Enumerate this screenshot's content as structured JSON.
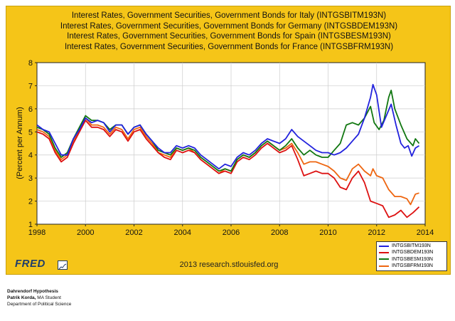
{
  "titles": [
    "Interest Rates, Government Securities, Government Bonds for Italy (INTGSBITM193N)",
    "Interest Rates, Government Securities, Government Bonds for Germany (INTGSBDEM193N)",
    "Interest Rates, Government Securities, Government Bonds for Spain (INTGSBESM193N)",
    "Interest Rates, Government Securities, Government Bonds for France (INTGSBFRM193N)"
  ],
  "source_text": "2013 research.stlouisfed.org",
  "logo_text": "FRED",
  "footer": {
    "line1": "Dahrendorf Hypothesis",
    "line2_name": "Patrik Korda,",
    "line2_rest": " MA Student",
    "line3": "Department of Political Science"
  },
  "chart_data": {
    "type": "line",
    "ylabel": "(Percent per Annum)",
    "xlabel": "",
    "xlim": [
      1998,
      2014
    ],
    "ylim": [
      1,
      8
    ],
    "x_ticks": [
      1998,
      2000,
      2002,
      2004,
      2006,
      2008,
      2010,
      2012,
      2014
    ],
    "y_ticks": [
      1,
      2,
      3,
      4,
      5,
      6,
      7,
      8
    ],
    "grid": true,
    "legend_position": "bottom-right",
    "series": [
      {
        "name": "INTGSBITM193N",
        "color": "#2222dd",
        "points": [
          [
            1998.0,
            5.3
          ],
          [
            1998.25,
            5.1
          ],
          [
            1998.5,
            5.0
          ],
          [
            1998.75,
            4.5
          ],
          [
            1999.0,
            4.0
          ],
          [
            1999.25,
            4.0
          ],
          [
            1999.5,
            4.7
          ],
          [
            1999.75,
            5.1
          ],
          [
            2000.0,
            5.6
          ],
          [
            2000.25,
            5.4
          ],
          [
            2000.5,
            5.5
          ],
          [
            2000.75,
            5.4
          ],
          [
            2001.0,
            5.0
          ],
          [
            2001.25,
            5.3
          ],
          [
            2001.5,
            5.3
          ],
          [
            2001.75,
            4.9
          ],
          [
            2002.0,
            5.2
          ],
          [
            2002.25,
            5.3
          ],
          [
            2002.5,
            4.9
          ],
          [
            2002.75,
            4.6
          ],
          [
            2003.0,
            4.3
          ],
          [
            2003.25,
            4.1
          ],
          [
            2003.5,
            4.1
          ],
          [
            2003.75,
            4.4
          ],
          [
            2004.0,
            4.3
          ],
          [
            2004.25,
            4.4
          ],
          [
            2004.5,
            4.3
          ],
          [
            2004.75,
            4.0
          ],
          [
            2005.0,
            3.8
          ],
          [
            2005.25,
            3.6
          ],
          [
            2005.5,
            3.4
          ],
          [
            2005.75,
            3.6
          ],
          [
            2006.0,
            3.5
          ],
          [
            2006.25,
            3.9
          ],
          [
            2006.5,
            4.1
          ],
          [
            2006.75,
            4.0
          ],
          [
            2007.0,
            4.2
          ],
          [
            2007.25,
            4.5
          ],
          [
            2007.5,
            4.7
          ],
          [
            2007.75,
            4.6
          ],
          [
            2008.0,
            4.5
          ],
          [
            2008.25,
            4.7
          ],
          [
            2008.5,
            5.1
          ],
          [
            2008.75,
            4.8
          ],
          [
            2009.0,
            4.6
          ],
          [
            2009.25,
            4.4
          ],
          [
            2009.5,
            4.2
          ],
          [
            2009.75,
            4.1
          ],
          [
            2010.0,
            4.1
          ],
          [
            2010.25,
            4.0
          ],
          [
            2010.5,
            4.1
          ],
          [
            2010.75,
            4.3
          ],
          [
            2011.0,
            4.6
          ],
          [
            2011.25,
            4.9
          ],
          [
            2011.5,
            5.6
          ],
          [
            2011.75,
            6.5
          ],
          [
            2011.85,
            7.05
          ],
          [
            2012.0,
            6.6
          ],
          [
            2012.2,
            5.2
          ],
          [
            2012.4,
            5.7
          ],
          [
            2012.6,
            6.2
          ],
          [
            2012.8,
            5.3
          ],
          [
            2013.0,
            4.5
          ],
          [
            2013.15,
            4.3
          ],
          [
            2013.3,
            4.4
          ],
          [
            2013.45,
            3.95
          ],
          [
            2013.6,
            4.3
          ],
          [
            2013.75,
            4.4
          ]
        ]
      },
      {
        "name": "INTGSBDEM193N",
        "color": "#dd1111",
        "points": [
          [
            1998.0,
            5.0
          ],
          [
            1998.25,
            4.9
          ],
          [
            1998.5,
            4.7
          ],
          [
            1998.75,
            4.1
          ],
          [
            1999.0,
            3.7
          ],
          [
            1999.25,
            3.9
          ],
          [
            1999.5,
            4.5
          ],
          [
            1999.75,
            5.0
          ],
          [
            2000.0,
            5.5
          ],
          [
            2000.25,
            5.2
          ],
          [
            2000.5,
            5.2
          ],
          [
            2000.75,
            5.1
          ],
          [
            2001.0,
            4.8
          ],
          [
            2001.25,
            5.1
          ],
          [
            2001.5,
            5.0
          ],
          [
            2001.75,
            4.6
          ],
          [
            2002.0,
            5.0
          ],
          [
            2002.25,
            5.1
          ],
          [
            2002.5,
            4.7
          ],
          [
            2002.75,
            4.4
          ],
          [
            2003.0,
            4.1
          ],
          [
            2003.25,
            3.9
          ],
          [
            2003.5,
            3.8
          ],
          [
            2003.75,
            4.2
          ],
          [
            2004.0,
            4.1
          ],
          [
            2004.25,
            4.2
          ],
          [
            2004.5,
            4.1
          ],
          [
            2004.75,
            3.8
          ],
          [
            2005.0,
            3.6
          ],
          [
            2005.25,
            3.4
          ],
          [
            2005.5,
            3.2
          ],
          [
            2005.75,
            3.3
          ],
          [
            2006.0,
            3.2
          ],
          [
            2006.25,
            3.7
          ],
          [
            2006.5,
            3.9
          ],
          [
            2006.75,
            3.8
          ],
          [
            2007.0,
            4.0
          ],
          [
            2007.25,
            4.3
          ],
          [
            2007.5,
            4.5
          ],
          [
            2007.75,
            4.3
          ],
          [
            2008.0,
            4.1
          ],
          [
            2008.25,
            4.2
          ],
          [
            2008.5,
            4.4
          ],
          [
            2008.75,
            3.8
          ],
          [
            2009.0,
            3.1
          ],
          [
            2009.25,
            3.2
          ],
          [
            2009.5,
            3.3
          ],
          [
            2009.75,
            3.2
          ],
          [
            2010.0,
            3.2
          ],
          [
            2010.25,
            3.0
          ],
          [
            2010.5,
            2.6
          ],
          [
            2010.75,
            2.5
          ],
          [
            2011.0,
            3.0
          ],
          [
            2011.25,
            3.3
          ],
          [
            2011.5,
            2.8
          ],
          [
            2011.75,
            2.0
          ],
          [
            2012.0,
            1.9
          ],
          [
            2012.25,
            1.8
          ],
          [
            2012.5,
            1.3
          ],
          [
            2012.75,
            1.4
          ],
          [
            2013.0,
            1.6
          ],
          [
            2013.25,
            1.3
          ],
          [
            2013.5,
            1.5
          ],
          [
            2013.75,
            1.75
          ]
        ]
      },
      {
        "name": "INTGSBESM193N",
        "color": "#117711",
        "points": [
          [
            1998.0,
            5.2
          ],
          [
            1998.25,
            5.1
          ],
          [
            1998.5,
            4.9
          ],
          [
            1998.75,
            4.3
          ],
          [
            1999.0,
            3.9
          ],
          [
            1999.25,
            4.1
          ],
          [
            1999.5,
            4.7
          ],
          [
            1999.75,
            5.2
          ],
          [
            2000.0,
            5.7
          ],
          [
            2000.25,
            5.5
          ],
          [
            2000.5,
            5.5
          ],
          [
            2000.75,
            5.4
          ],
          [
            2001.0,
            5.1
          ],
          [
            2001.25,
            5.3
          ],
          [
            2001.5,
            5.3
          ],
          [
            2001.75,
            4.9
          ],
          [
            2002.0,
            5.2
          ],
          [
            2002.25,
            5.3
          ],
          [
            2002.5,
            4.9
          ],
          [
            2002.75,
            4.6
          ],
          [
            2003.0,
            4.2
          ],
          [
            2003.25,
            4.1
          ],
          [
            2003.5,
            4.0
          ],
          [
            2003.75,
            4.3
          ],
          [
            2004.0,
            4.2
          ],
          [
            2004.25,
            4.3
          ],
          [
            2004.5,
            4.2
          ],
          [
            2004.75,
            3.9
          ],
          [
            2005.0,
            3.7
          ],
          [
            2005.25,
            3.5
          ],
          [
            2005.5,
            3.3
          ],
          [
            2005.75,
            3.4
          ],
          [
            2006.0,
            3.3
          ],
          [
            2006.25,
            3.8
          ],
          [
            2006.5,
            4.0
          ],
          [
            2006.75,
            3.9
          ],
          [
            2007.0,
            4.1
          ],
          [
            2007.25,
            4.4
          ],
          [
            2007.5,
            4.6
          ],
          [
            2007.75,
            4.4
          ],
          [
            2008.0,
            4.2
          ],
          [
            2008.25,
            4.4
          ],
          [
            2008.5,
            4.7
          ],
          [
            2008.75,
            4.3
          ],
          [
            2009.0,
            4.0
          ],
          [
            2009.25,
            4.2
          ],
          [
            2009.5,
            4.0
          ],
          [
            2009.75,
            3.9
          ],
          [
            2010.0,
            3.9
          ],
          [
            2010.25,
            4.2
          ],
          [
            2010.5,
            4.5
          ],
          [
            2010.75,
            5.3
          ],
          [
            2011.0,
            5.4
          ],
          [
            2011.25,
            5.3
          ],
          [
            2011.5,
            5.6
          ],
          [
            2011.75,
            6.1
          ],
          [
            2011.9,
            5.4
          ],
          [
            2012.1,
            5.1
          ],
          [
            2012.3,
            5.5
          ],
          [
            2012.5,
            6.5
          ],
          [
            2012.6,
            6.8
          ],
          [
            2012.75,
            6.0
          ],
          [
            2013.0,
            5.3
          ],
          [
            2013.25,
            4.7
          ],
          [
            2013.5,
            4.4
          ],
          [
            2013.6,
            4.7
          ],
          [
            2013.75,
            4.5
          ]
        ]
      },
      {
        "name": "INTGSBFRM193N",
        "color": "#ee6611",
        "points": [
          [
            1998.0,
            5.1
          ],
          [
            1998.25,
            5.0
          ],
          [
            1998.5,
            4.8
          ],
          [
            1998.75,
            4.2
          ],
          [
            1999.0,
            3.8
          ],
          [
            1999.25,
            4.0
          ],
          [
            1999.5,
            4.6
          ],
          [
            1999.75,
            5.1
          ],
          [
            2000.0,
            5.6
          ],
          [
            2000.25,
            5.3
          ],
          [
            2000.5,
            5.3
          ],
          [
            2000.75,
            5.2
          ],
          [
            2001.0,
            4.9
          ],
          [
            2001.25,
            5.2
          ],
          [
            2001.5,
            5.1
          ],
          [
            2001.75,
            4.7
          ],
          [
            2002.0,
            5.1
          ],
          [
            2002.25,
            5.2
          ],
          [
            2002.5,
            4.8
          ],
          [
            2002.75,
            4.5
          ],
          [
            2003.0,
            4.1
          ],
          [
            2003.25,
            4.0
          ],
          [
            2003.5,
            3.9
          ],
          [
            2003.75,
            4.3
          ],
          [
            2004.0,
            4.2
          ],
          [
            2004.25,
            4.3
          ],
          [
            2004.5,
            4.1
          ],
          [
            2004.75,
            3.8
          ],
          [
            2005.0,
            3.6
          ],
          [
            2005.25,
            3.4
          ],
          [
            2005.5,
            3.2
          ],
          [
            2005.75,
            3.4
          ],
          [
            2006.0,
            3.3
          ],
          [
            2006.25,
            3.8
          ],
          [
            2006.5,
            4.0
          ],
          [
            2006.75,
            3.9
          ],
          [
            2007.0,
            4.1
          ],
          [
            2007.25,
            4.4
          ],
          [
            2007.5,
            4.6
          ],
          [
            2007.75,
            4.4
          ],
          [
            2008.0,
            4.2
          ],
          [
            2008.25,
            4.3
          ],
          [
            2008.5,
            4.5
          ],
          [
            2008.75,
            4.1
          ],
          [
            2009.0,
            3.6
          ],
          [
            2009.25,
            3.7
          ],
          [
            2009.5,
            3.7
          ],
          [
            2009.75,
            3.6
          ],
          [
            2010.0,
            3.5
          ],
          [
            2010.25,
            3.3
          ],
          [
            2010.5,
            3.0
          ],
          [
            2010.75,
            2.9
          ],
          [
            2011.0,
            3.4
          ],
          [
            2011.25,
            3.6
          ],
          [
            2011.5,
            3.3
          ],
          [
            2011.75,
            3.1
          ],
          [
            2011.85,
            3.4
          ],
          [
            2012.0,
            3.1
          ],
          [
            2012.25,
            3.0
          ],
          [
            2012.5,
            2.5
          ],
          [
            2012.75,
            2.2
          ],
          [
            2013.0,
            2.2
          ],
          [
            2013.25,
            2.1
          ],
          [
            2013.4,
            1.85
          ],
          [
            2013.6,
            2.3
          ],
          [
            2013.75,
            2.35
          ]
        ]
      }
    ]
  }
}
